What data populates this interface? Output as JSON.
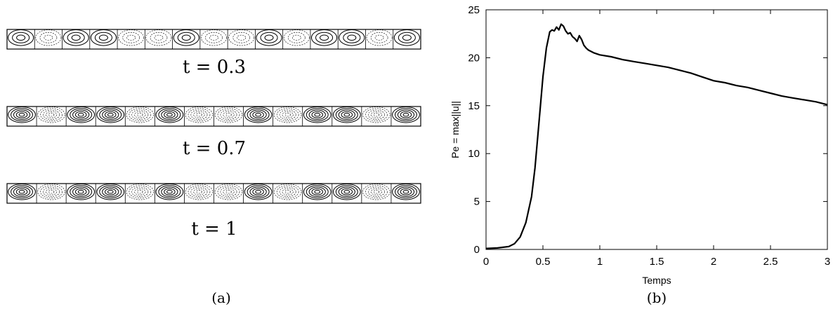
{
  "panel_a": {
    "snapshots": [
      {
        "label": "t = 0.3",
        "cells": [
          "pos",
          "neg",
          "pos",
          "pos",
          "neg",
          "neg",
          "pos",
          "neg",
          "neg",
          "pos",
          "neg",
          "pos",
          "pos",
          "neg",
          "pos"
        ]
      },
      {
        "label": "t = 0.7",
        "cells": [
          "pos",
          "neg",
          "pos",
          "pos",
          "neg",
          "pos",
          "neg",
          "neg",
          "pos",
          "neg",
          "pos",
          "pos",
          "neg",
          "pos"
        ]
      },
      {
        "label": "t = 1",
        "cells": [
          "pos",
          "neg",
          "pos",
          "pos",
          "neg",
          "pos",
          "neg",
          "neg",
          "pos",
          "neg",
          "pos",
          "pos",
          "neg",
          "pos"
        ]
      }
    ],
    "caption": "(a)"
  },
  "panel_b": {
    "caption": "(b)"
  },
  "chart_data": {
    "type": "line",
    "xlabel": "Temps",
    "ylabel": "Pe = max||u||",
    "xlim": [
      0,
      3
    ],
    "ylim": [
      0,
      25
    ],
    "xticks": [
      "0",
      "0.5",
      "1",
      "1.5",
      "2",
      "2.5",
      "3"
    ],
    "yticks": [
      "0",
      "5",
      "10",
      "15",
      "20",
      "25"
    ],
    "grid": false,
    "series": [
      {
        "x": [
          0,
          0.1,
          0.2,
          0.25,
          0.3,
          0.35,
          0.4,
          0.43,
          0.46,
          0.5,
          0.53,
          0.56,
          0.58,
          0.6,
          0.62,
          0.64,
          0.66,
          0.68,
          0.7,
          0.72,
          0.74,
          0.76,
          0.78,
          0.8,
          0.82,
          0.84,
          0.86,
          0.88,
          0.9,
          0.95,
          1.0,
          1.1,
          1.2,
          1.3,
          1.4,
          1.5,
          1.6,
          1.7,
          1.8,
          1.9,
          2.0,
          2.1,
          2.2,
          2.3,
          2.4,
          2.5,
          2.6,
          2.7,
          2.8,
          2.9,
          3.0
        ],
        "y": [
          0.1,
          0.15,
          0.3,
          0.6,
          1.3,
          2.8,
          5.5,
          8.5,
          12.5,
          18.0,
          21.0,
          22.7,
          22.9,
          22.8,
          23.2,
          22.9,
          23.5,
          23.3,
          22.8,
          22.5,
          22.6,
          22.2,
          22.0,
          21.7,
          22.3,
          21.9,
          21.3,
          21.0,
          20.8,
          20.5,
          20.3,
          20.1,
          19.8,
          19.6,
          19.4,
          19.2,
          19.0,
          18.7,
          18.4,
          18.0,
          17.6,
          17.4,
          17.1,
          16.9,
          16.6,
          16.3,
          16.0,
          15.8,
          15.6,
          15.4,
          15.1
        ]
      }
    ]
  }
}
